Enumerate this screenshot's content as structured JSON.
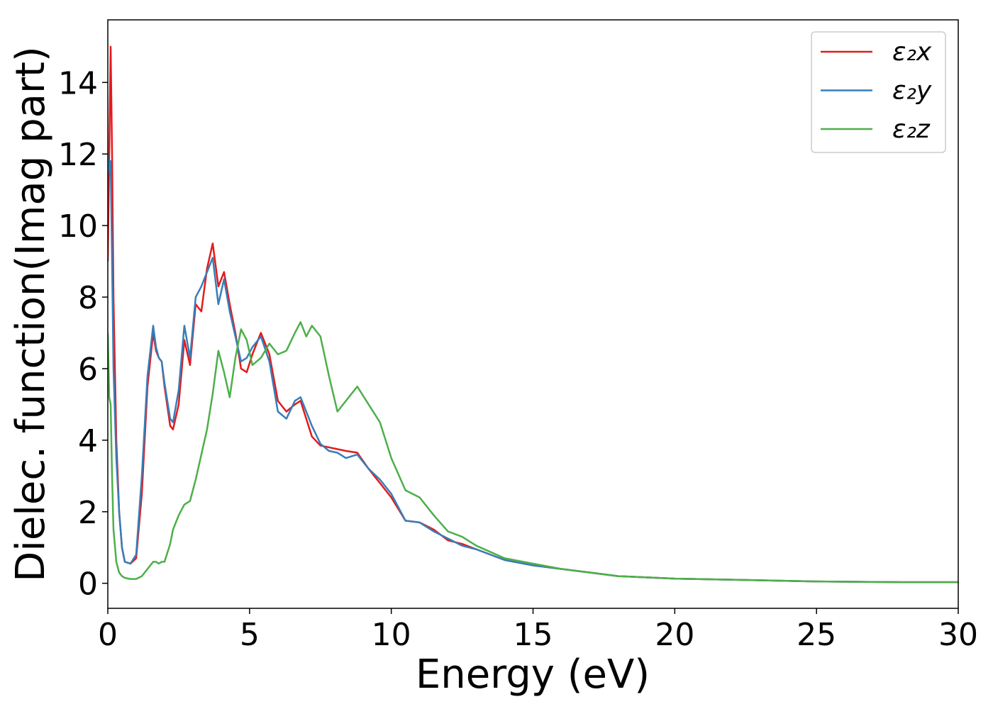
{
  "chart_data": {
    "type": "line",
    "xlabel": "Energy (eV)",
    "ylabel": "Dielec. function(Imag part)",
    "x": [
      0,
      0.05,
      0.1,
      0.15,
      0.2,
      0.3,
      0.4,
      0.5,
      0.6,
      0.8,
      1.0,
      1.2,
      1.4,
      1.6,
      1.7,
      1.8,
      1.9,
      2.0,
      2.2,
      2.3,
      2.5,
      2.7,
      2.9,
      3.1,
      3.3,
      3.5,
      3.7,
      3.9,
      4.1,
      4.3,
      4.5,
      4.7,
      4.9,
      5.1,
      5.4,
      5.7,
      6.0,
      6.3,
      6.6,
      6.8,
      7.0,
      7.2,
      7.5,
      7.8,
      8.1,
      8.4,
      8.8,
      9.2,
      9.6,
      10.0,
      10.5,
      11.0,
      11.5,
      12.0,
      12.5,
      13.0,
      14,
      15,
      16,
      17,
      18,
      20,
      22,
      25,
      28,
      30
    ],
    "series": [
      {
        "name": "ε₂x",
        "color": "#e41a1c",
        "values": [
          9,
          12,
          15,
          12,
          8,
          4,
          2,
          1,
          0.6,
          0.55,
          0.7,
          2.5,
          5.5,
          7,
          6.5,
          6.3,
          6.2,
          5.5,
          4.4,
          4.3,
          5,
          6.8,
          6.1,
          7.8,
          7.6,
          8.8,
          9.5,
          8.3,
          8.7,
          7.8,
          7,
          6,
          5.9,
          6.4,
          7.0,
          6.4,
          5.1,
          4.8,
          5.0,
          5.1,
          4.6,
          4.1,
          3.85,
          3.8,
          3.75,
          3.7,
          3.65,
          3.2,
          2.8,
          2.4,
          1.75,
          1.7,
          1.5,
          1.2,
          1.1,
          0.95,
          0.65,
          0.5,
          0.4,
          0.3,
          0.2,
          0.13,
          0.1,
          0.05,
          0.03,
          0.03
        ]
      },
      {
        "name": "ε₂y",
        "color": "#377eb8",
        "values": [
          12,
          11.5,
          11.8,
          9,
          6,
          3.5,
          2,
          1,
          0.6,
          0.55,
          0.8,
          3,
          5.8,
          7.2,
          6.6,
          6.3,
          6.2,
          5.6,
          4.6,
          4.5,
          5.4,
          7.2,
          6.3,
          8.0,
          8.3,
          8.7,
          9.1,
          7.8,
          8.5,
          7.6,
          6.9,
          6.2,
          6.3,
          6.6,
          6.9,
          6.2,
          4.8,
          4.6,
          5.1,
          5.2,
          4.8,
          4.4,
          3.9,
          3.7,
          3.65,
          3.5,
          3.6,
          3.2,
          2.9,
          2.5,
          1.75,
          1.7,
          1.45,
          1.25,
          1.05,
          0.95,
          0.65,
          0.5,
          0.4,
          0.3,
          0.2,
          0.13,
          0.1,
          0.05,
          0.03,
          0.03
        ]
      },
      {
        "name": "ε₂z",
        "color": "#4daf4a",
        "values": [
          7,
          5.2,
          5,
          3,
          1.5,
          0.6,
          0.3,
          0.2,
          0.15,
          0.12,
          0.12,
          0.2,
          0.4,
          0.6,
          0.6,
          0.55,
          0.6,
          0.6,
          1.1,
          1.5,
          1.9,
          2.2,
          2.3,
          2.9,
          3.6,
          4.3,
          5.3,
          6.5,
          5.9,
          5.2,
          6.3,
          7.1,
          6.8,
          6.1,
          6.3,
          6.7,
          6.4,
          6.5,
          7.0,
          7.3,
          6.9,
          7.2,
          6.9,
          5.8,
          4.8,
          5.1,
          5.5,
          5.0,
          4.5,
          3.5,
          2.6,
          2.4,
          1.9,
          1.45,
          1.3,
          1.05,
          0.7,
          0.55,
          0.4,
          0.3,
          0.2,
          0.13,
          0.1,
          0.05,
          0.03,
          0.03
        ]
      }
    ],
    "xlim": [
      0,
      30
    ],
    "xticks": [
      0,
      5,
      10,
      15,
      20,
      25,
      30
    ],
    "ylim": [
      -0.7,
      15.75
    ],
    "yticks": [
      0,
      2,
      4,
      6,
      8,
      10,
      12,
      14
    ],
    "legend": "upper right"
  }
}
